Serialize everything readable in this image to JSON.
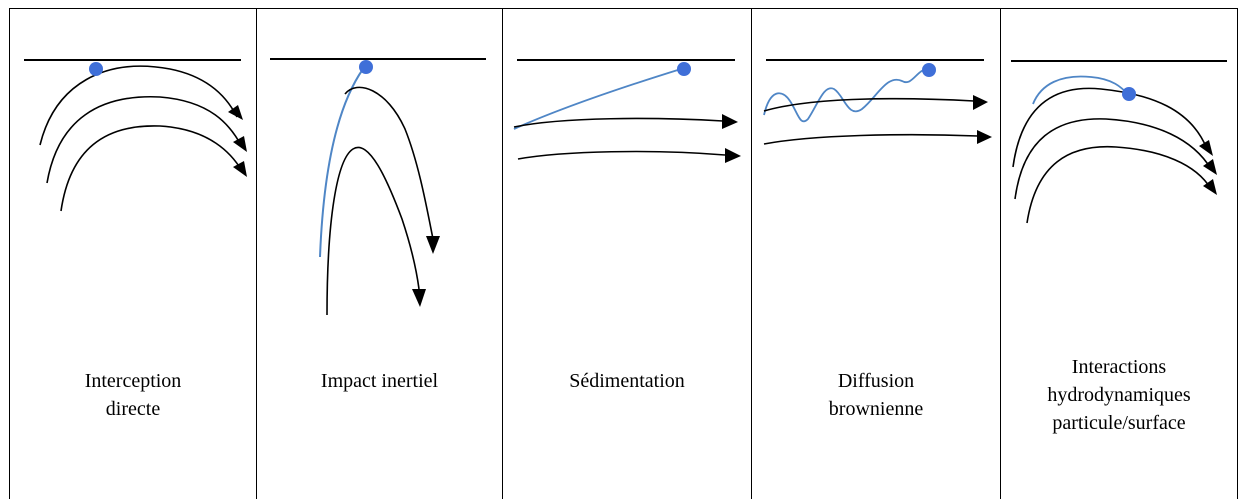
{
  "colors": {
    "line": "#000000",
    "particle": "#3f6fd8",
    "trajectory": "#4f86c6",
    "border": "#000000"
  },
  "panels": [
    {
      "id": "interception-directe",
      "caption_lines": [
        "Interception",
        "directe"
      ]
    },
    {
      "id": "impact-inertiel",
      "caption_lines": [
        "Impact inertiel"
      ]
    },
    {
      "id": "sedimentation",
      "caption_lines": [
        "Sédimentation"
      ]
    },
    {
      "id": "diffusion-brownienne",
      "caption_lines": [
        "Diffusion",
        "brownienne"
      ]
    },
    {
      "id": "interactions-hydrodynamiques",
      "caption_lines": [
        "Interactions",
        "hydrodynamiques",
        "particule/surface"
      ]
    }
  ]
}
